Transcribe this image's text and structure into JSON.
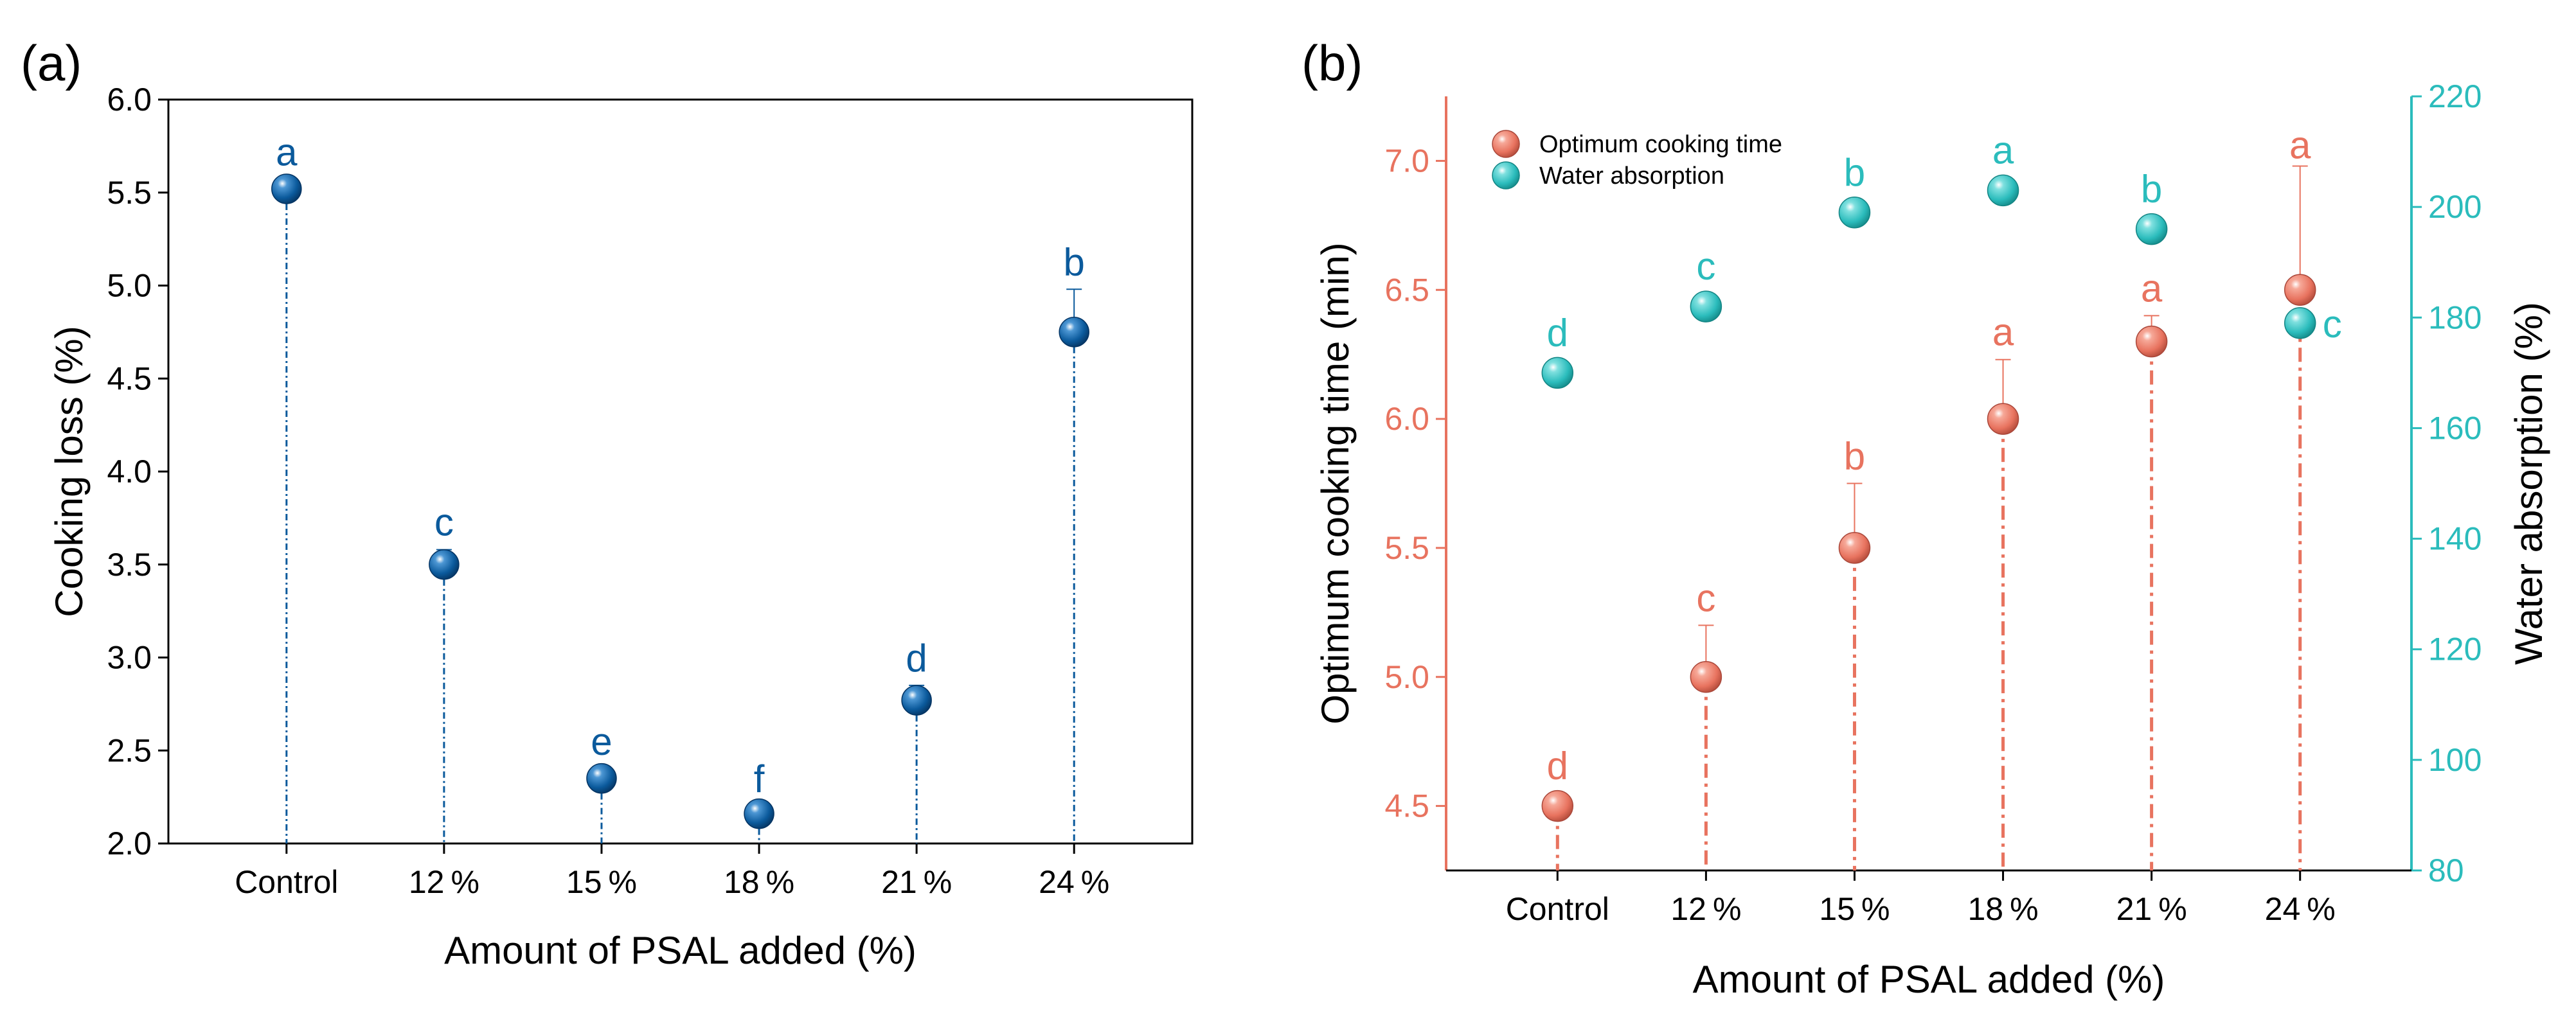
{
  "chart_data": [
    {
      "panel": "(a)",
      "type": "scatter",
      "categories": [
        "Control",
        "12%",
        "15%",
        "18%",
        "21%",
        "24%"
      ],
      "xlabel": "Amount of PSAL added (%)",
      "ylabel": "Cooking loss (%)",
      "ylim": [
        2.0,
        6.0
      ],
      "yticks": [
        "2.0",
        "2.5",
        "3.0",
        "3.5",
        "4.0",
        "4.5",
        "5.0",
        "5.5",
        "6.0"
      ],
      "color": "#0b5a9c",
      "series": [
        {
          "name": "Cooking loss",
          "values": [
            5.52,
            3.5,
            2.35,
            2.16,
            2.77,
            4.75
          ],
          "errors": [
            0.05,
            0.08,
            0.05,
            0.04,
            0.08,
            0.23
          ],
          "letters": [
            "a",
            "c",
            "e",
            "f",
            "d",
            "b"
          ]
        }
      ]
    },
    {
      "panel": "(b)",
      "type": "scatter",
      "categories": [
        "Control",
        "12%",
        "15%",
        "18%",
        "21%",
        "24%"
      ],
      "xlabel": "Amount of PSAL added (%)",
      "ylabel": "Optimum cooking time (min)",
      "ylabel_right": "Water absorption (%)",
      "ylim": [
        4.25,
        7.25
      ],
      "ylim_right": [
        80,
        220
      ],
      "yticks": [
        "4.5",
        "5.0",
        "5.5",
        "6.0",
        "6.5",
        "7.0"
      ],
      "yticks_right": [
        "80",
        "100",
        "120",
        "140",
        "160",
        "180",
        "200",
        "220"
      ],
      "series": [
        {
          "name": "Optimum cooking time",
          "axis": "left",
          "color": "#e8735f",
          "values": [
            4.5,
            5.0,
            5.5,
            6.0,
            6.3,
            6.5
          ],
          "errors": [
            0.0,
            0.2,
            0.25,
            0.23,
            0.1,
            0.48
          ],
          "letters": [
            "d",
            "c",
            "b",
            "a",
            "a",
            "a"
          ]
        },
        {
          "name": "Water absorption",
          "axis": "right",
          "color": "#2bbcbc",
          "values": [
            170,
            182,
            199,
            203,
            196,
            179
          ],
          "errors": [
            0,
            0,
            0,
            0,
            0,
            0
          ],
          "letters": [
            "d",
            "c",
            "b",
            "a",
            "b",
            "c"
          ]
        }
      ]
    }
  ]
}
